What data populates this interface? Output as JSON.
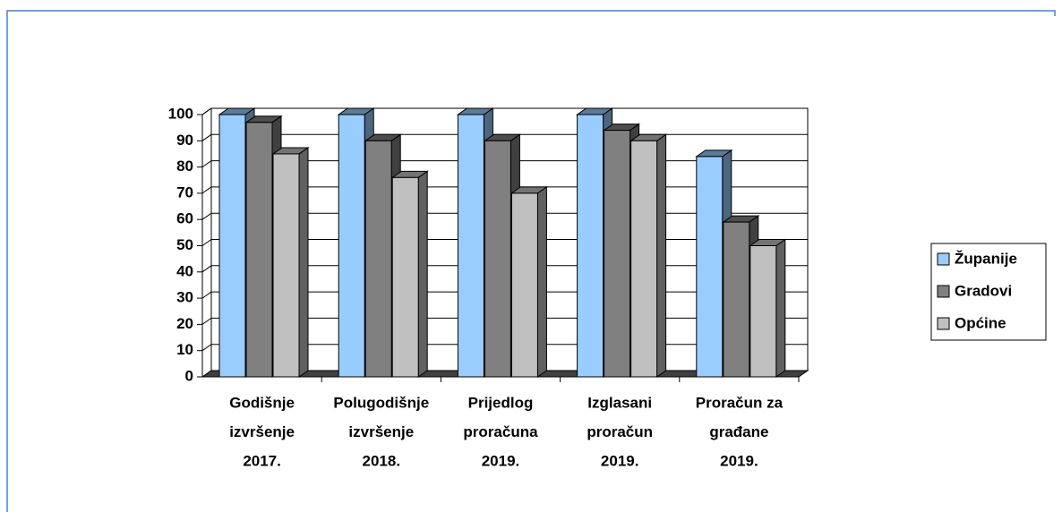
{
  "chart_data": {
    "type": "bar3d",
    "categories": [
      [
        "Godišnje",
        "izvršenje",
        "2017."
      ],
      [
        "Polugodišnje",
        "izvršenje",
        "2018."
      ],
      [
        "Prijedlog",
        "proračuna",
        "2019."
      ],
      [
        "Izglasani",
        "proračun",
        "2019."
      ],
      [
        "Proračun za",
        "građane",
        "2019."
      ]
    ],
    "series": [
      {
        "name": "Županije",
        "color": "#99ccff",
        "values": [
          100,
          100,
          100,
          100,
          84
        ]
      },
      {
        "name": "Gradovi",
        "color": "#808080",
        "values": [
          97,
          90,
          90,
          94,
          59
        ]
      },
      {
        "name": "Općine",
        "color": "#c0c0c0",
        "values": [
          85,
          76,
          70,
          90,
          50
        ]
      }
    ],
    "ylim": [
      0,
      100
    ],
    "yticks": [
      0,
      10,
      20,
      30,
      40,
      50,
      60,
      70,
      80,
      90,
      100
    ],
    "grid": true,
    "legend": "right"
  }
}
